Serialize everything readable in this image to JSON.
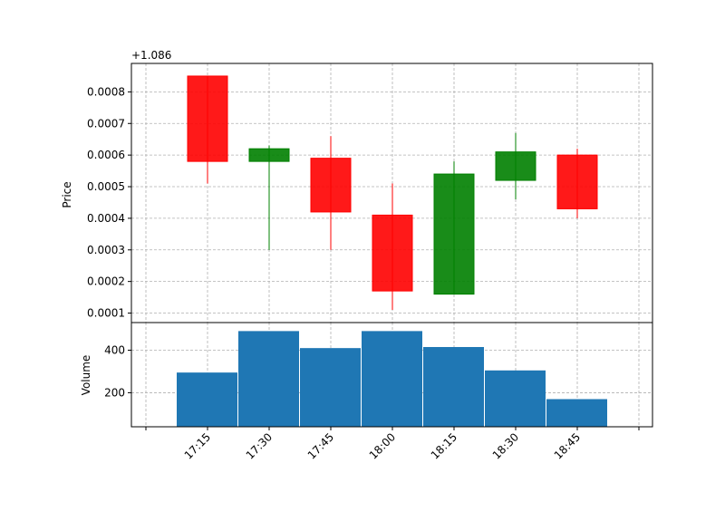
{
  "chart_data": [
    {
      "type": "candlestick",
      "ylabel": "Price",
      "offset_label": "+1.086",
      "x": [
        "17:15",
        "17:30",
        "17:45",
        "18:00",
        "18:15",
        "18:30",
        "18:45"
      ],
      "open": [
        0.00085,
        0.00058,
        0.00059,
        0.00041,
        0.00016,
        0.00052,
        0.0006
      ],
      "high": [
        0.00085,
        0.00063,
        0.00066,
        0.00051,
        0.00058,
        0.00067,
        0.00062
      ],
      "low": [
        0.00051,
        0.0003,
        0.0003,
        0.00011,
        0.00016,
        0.00046,
        0.0004
      ],
      "close": [
        0.00058,
        0.00062,
        0.00042,
        0.00017,
        0.00054,
        0.00061,
        0.00043
      ],
      "ylim": [
        7e-05,
        0.00089
      ],
      "yticks": [
        "0.0001",
        "0.0002",
        "0.0003",
        "0.0004",
        "0.0005",
        "0.0006",
        "0.0007",
        "0.0008"
      ],
      "grid": true,
      "colors": {
        "up": "#008000",
        "down": "#ff0000"
      }
    },
    {
      "type": "bar",
      "ylabel": "Volume",
      "categories": [
        "17:15",
        "17:30",
        "17:45",
        "18:00",
        "18:15",
        "18:30",
        "18:45"
      ],
      "values": [
        295,
        490,
        410,
        490,
        415,
        305,
        170
      ],
      "ylim": [
        40,
        530
      ],
      "yticks": [
        "200",
        "400"
      ],
      "grid": true,
      "color": "#1f77b4"
    }
  ]
}
